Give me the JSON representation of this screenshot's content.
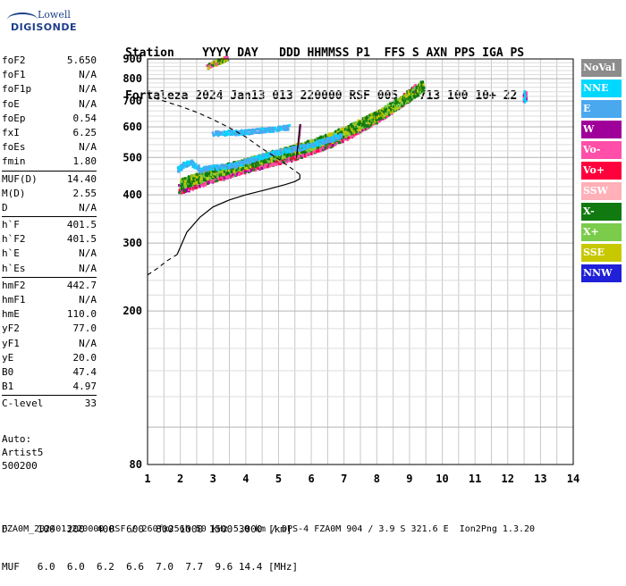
{
  "logo": {
    "top": "Lowell",
    "main": "DIGISONDE"
  },
  "header": {
    "line1": "Station    YYYY DAY   DDD HHMMSS P1  FFS S AXN PPS IGA PS",
    "line2": "Fortaleza 2024 Jan13 013 220000 RSF 005 2 713 100 10+ 22"
  },
  "params": [
    [
      {
        "label": "foF2",
        "value": "5.650"
      },
      {
        "label": "foF1",
        "value": "N/A"
      },
      {
        "label": "foF1p",
        "value": "N/A"
      },
      {
        "label": "foE",
        "value": "N/A"
      },
      {
        "label": "foEp",
        "value": "0.54"
      },
      {
        "label": "fxI",
        "value": "6.25"
      },
      {
        "label": "foEs",
        "value": "N/A"
      },
      {
        "label": "fmin",
        "value": "1.80"
      }
    ],
    [
      {
        "label": "MUF(D)",
        "value": "14.40"
      },
      {
        "label": "M(D)",
        "value": "2.55"
      },
      {
        "label": "D",
        "value": "N/A"
      }
    ],
    [
      {
        "label": "h`F",
        "value": "401.5"
      },
      {
        "label": "h`F2",
        "value": "401.5"
      },
      {
        "label": "h`E",
        "value": "N/A"
      },
      {
        "label": "h`Es",
        "value": "N/A"
      }
    ],
    [
      {
        "label": "hmF2",
        "value": "442.7"
      },
      {
        "label": "hmF1",
        "value": "N/A"
      },
      {
        "label": "hmE",
        "value": "110.0"
      },
      {
        "label": "yF2",
        "value": "77.0"
      },
      {
        "label": "yF1",
        "value": "N/A"
      },
      {
        "label": "yE",
        "value": "20.0"
      },
      {
        "label": "B0",
        "value": "47.4"
      },
      {
        "label": "B1",
        "value": "4.97"
      }
    ],
    [
      {
        "label": "C-level",
        "value": "33"
      }
    ]
  ],
  "auto": {
    "l1": "Auto:",
    "l2": "Artist5",
    "l3": "500200"
  },
  "legend": [
    {
      "label": "NoVal",
      "color": "#8c8c8c"
    },
    {
      "label": "NNE",
      "color": "#00d8ff"
    },
    {
      "label": "E",
      "color": "#4aa8ef"
    },
    {
      "label": "W",
      "color": "#a0009a"
    },
    {
      "label": "Vo-",
      "color": "#ff4fa8"
    },
    {
      "label": "Vo+",
      "color": "#ff003c"
    },
    {
      "label": "SSW",
      "color": "#ffb0b8"
    },
    {
      "label": "X-",
      "color": "#107a10"
    },
    {
      "label": "X+",
      "color": "#7acc4a"
    },
    {
      "label": "SSE",
      "color": "#c8c800"
    },
    {
      "label": "NNW",
      "color": "#2020d8"
    }
  ],
  "footer": {
    "line1": "D     100  200  400  600  800 1000 1500 3000 [km]",
    "line2": "MUF   6.0  6.0  6.2  6.6  7.0  7.7  9.6 14.4 [MHz]",
    "line3": "FZA0M_2024013220000.RSF / 260fx256h 50 kHz 5.0 km / DPS-4 FZA0M 904 / 3.9 S 321.6 E  Ion2Png 1.3.20"
  },
  "chart_data": {
    "type": "scatter",
    "xlim": [
      1,
      14
    ],
    "ylim": [
      80,
      900
    ],
    "x_ticks": [
      1,
      2,
      3,
      4,
      5,
      6,
      7,
      8,
      9,
      10,
      11,
      12,
      13,
      14
    ],
    "y_ticks": [
      80,
      200,
      300,
      400,
      500,
      600,
      700,
      800,
      900
    ],
    "grid": true,
    "y_scale": "log",
    "profile_solid": [
      [
        1.9,
        280
      ],
      [
        2.2,
        320
      ],
      [
        2.6,
        350
      ],
      [
        3.0,
        372
      ],
      [
        3.5,
        388
      ],
      [
        4.0,
        400
      ],
      [
        4.6,
        412
      ],
      [
        5.2,
        425
      ],
      [
        5.5,
        433
      ],
      [
        5.65,
        440
      ],
      [
        5.65,
        452
      ]
    ],
    "profile_dashed_upper": [
      [
        5.65,
        452
      ],
      [
        5.0,
        495
      ],
      [
        4.5,
        527
      ],
      [
        4.0,
        565
      ],
      [
        3.5,
        597
      ],
      [
        3.0,
        627
      ],
      [
        2.5,
        655
      ],
      [
        2.0,
        679
      ],
      [
        1.5,
        700
      ],
      [
        1.05,
        720
      ]
    ],
    "profile_dashed_lower": [
      [
        1.0,
        248
      ],
      [
        1.3,
        258
      ],
      [
        1.6,
        270
      ],
      [
        1.9,
        280
      ]
    ],
    "trace_lines": [
      {
        "color": "#000000",
        "points": [
          [
            5.55,
            500
          ],
          [
            5.6,
            550
          ],
          [
            5.65,
            610
          ]
        ]
      },
      {
        "color": "#8a0060",
        "points": [
          [
            5.6,
            528
          ],
          [
            5.65,
            570
          ],
          [
            5.68,
            610
          ]
        ]
      }
    ],
    "traces": [
      {
        "mode": "O",
        "color_cycle": [
          "#ff4fa8",
          "#ff003c",
          "#a0009a",
          "#107a10",
          "#ff4fa8",
          "#ff4fa8"
        ],
        "points": [
          [
            1.95,
            408
          ],
          [
            2.2,
            414
          ],
          [
            2.5,
            422
          ],
          [
            2.8,
            432
          ],
          [
            3.1,
            440
          ],
          [
            3.4,
            447
          ],
          [
            3.7,
            455
          ],
          [
            4.0,
            462
          ],
          [
            4.3,
            470
          ],
          [
            4.6,
            477
          ],
          [
            4.9,
            485
          ],
          [
            5.2,
            492
          ],
          [
            5.5,
            500
          ],
          [
            5.8,
            510
          ],
          [
            6.1,
            522
          ],
          [
            6.4,
            533
          ],
          [
            6.7,
            545
          ],
          [
            7.0,
            560
          ],
          [
            7.3,
            577
          ],
          [
            7.6,
            596
          ],
          [
            7.9,
            617
          ],
          [
            8.2,
            640
          ],
          [
            8.5,
            664
          ],
          [
            8.8,
            692
          ],
          [
            9.0,
            715
          ],
          [
            9.15,
            738
          ]
        ]
      },
      {
        "mode": "X",
        "color_cycle": [
          "#107a10",
          "#107a10",
          "#7acc4a",
          "#c8c800"
        ],
        "points": [
          [
            2.0,
            420
          ],
          [
            2.3,
            428
          ],
          [
            2.6,
            436
          ],
          [
            2.9,
            446
          ],
          [
            3.2,
            454
          ],
          [
            3.5,
            461
          ],
          [
            3.8,
            469
          ],
          [
            4.1,
            477
          ],
          [
            4.4,
            485
          ],
          [
            4.7,
            493
          ],
          [
            5.0,
            501
          ],
          [
            5.3,
            509
          ],
          [
            5.6,
            518
          ],
          [
            5.9,
            528
          ],
          [
            6.2,
            538
          ],
          [
            6.5,
            550
          ],
          [
            6.8,
            563
          ],
          [
            7.1,
            578
          ],
          [
            7.4,
            593
          ],
          [
            7.7,
            611
          ],
          [
            8.0,
            630
          ],
          [
            8.3,
            652
          ],
          [
            8.6,
            676
          ],
          [
            8.9,
            702
          ],
          [
            9.2,
            730
          ],
          [
            9.4,
            755
          ]
        ]
      },
      {
        "mode": "E",
        "color_cycle": [
          "#4aa8ef",
          "#4aa8ef",
          "#00d8ff"
        ],
        "points": [
          [
            1.9,
            465
          ],
          [
            2.1,
            478
          ],
          [
            2.3,
            485
          ],
          [
            2.6,
            463
          ],
          [
            2.9,
            470
          ],
          [
            3.3,
            473
          ],
          [
            3.7,
            478
          ],
          [
            4.0,
            488
          ],
          [
            4.4,
            500
          ],
          [
            4.8,
            512
          ],
          [
            5.2,
            520
          ],
          [
            5.6,
            528
          ],
          [
            6.0,
            538
          ],
          [
            6.3,
            548
          ],
          [
            6.6,
            558
          ],
          [
            6.9,
            570
          ]
        ]
      },
      {
        "mode": "E2",
        "color_cycle": [
          "#4aa8ef",
          "#4aa8ef",
          "#00d8ff"
        ],
        "points": [
          [
            3.0,
            576
          ],
          [
            3.4,
            578
          ],
          [
            3.8,
            580
          ],
          [
            4.2,
            584
          ],
          [
            4.6,
            588
          ],
          [
            5.0,
            593
          ],
          [
            5.3,
            598
          ]
        ]
      },
      {
        "mode": "top",
        "color_cycle": [
          "#ff4fa8",
          "#c8c800",
          "#107a10"
        ],
        "points": [
          [
            2.8,
            860
          ],
          [
            3.0,
            875
          ],
          [
            3.2,
            888
          ],
          [
            3.4,
            900
          ]
        ]
      },
      {
        "mode": "spur",
        "color_cycle": [
          "#00d8ff",
          "#a0009a",
          "#ff4fa8"
        ],
        "points": [
          [
            12.5,
            705
          ],
          [
            12.5,
            720
          ],
          [
            12.5,
            735
          ]
        ]
      }
    ]
  }
}
